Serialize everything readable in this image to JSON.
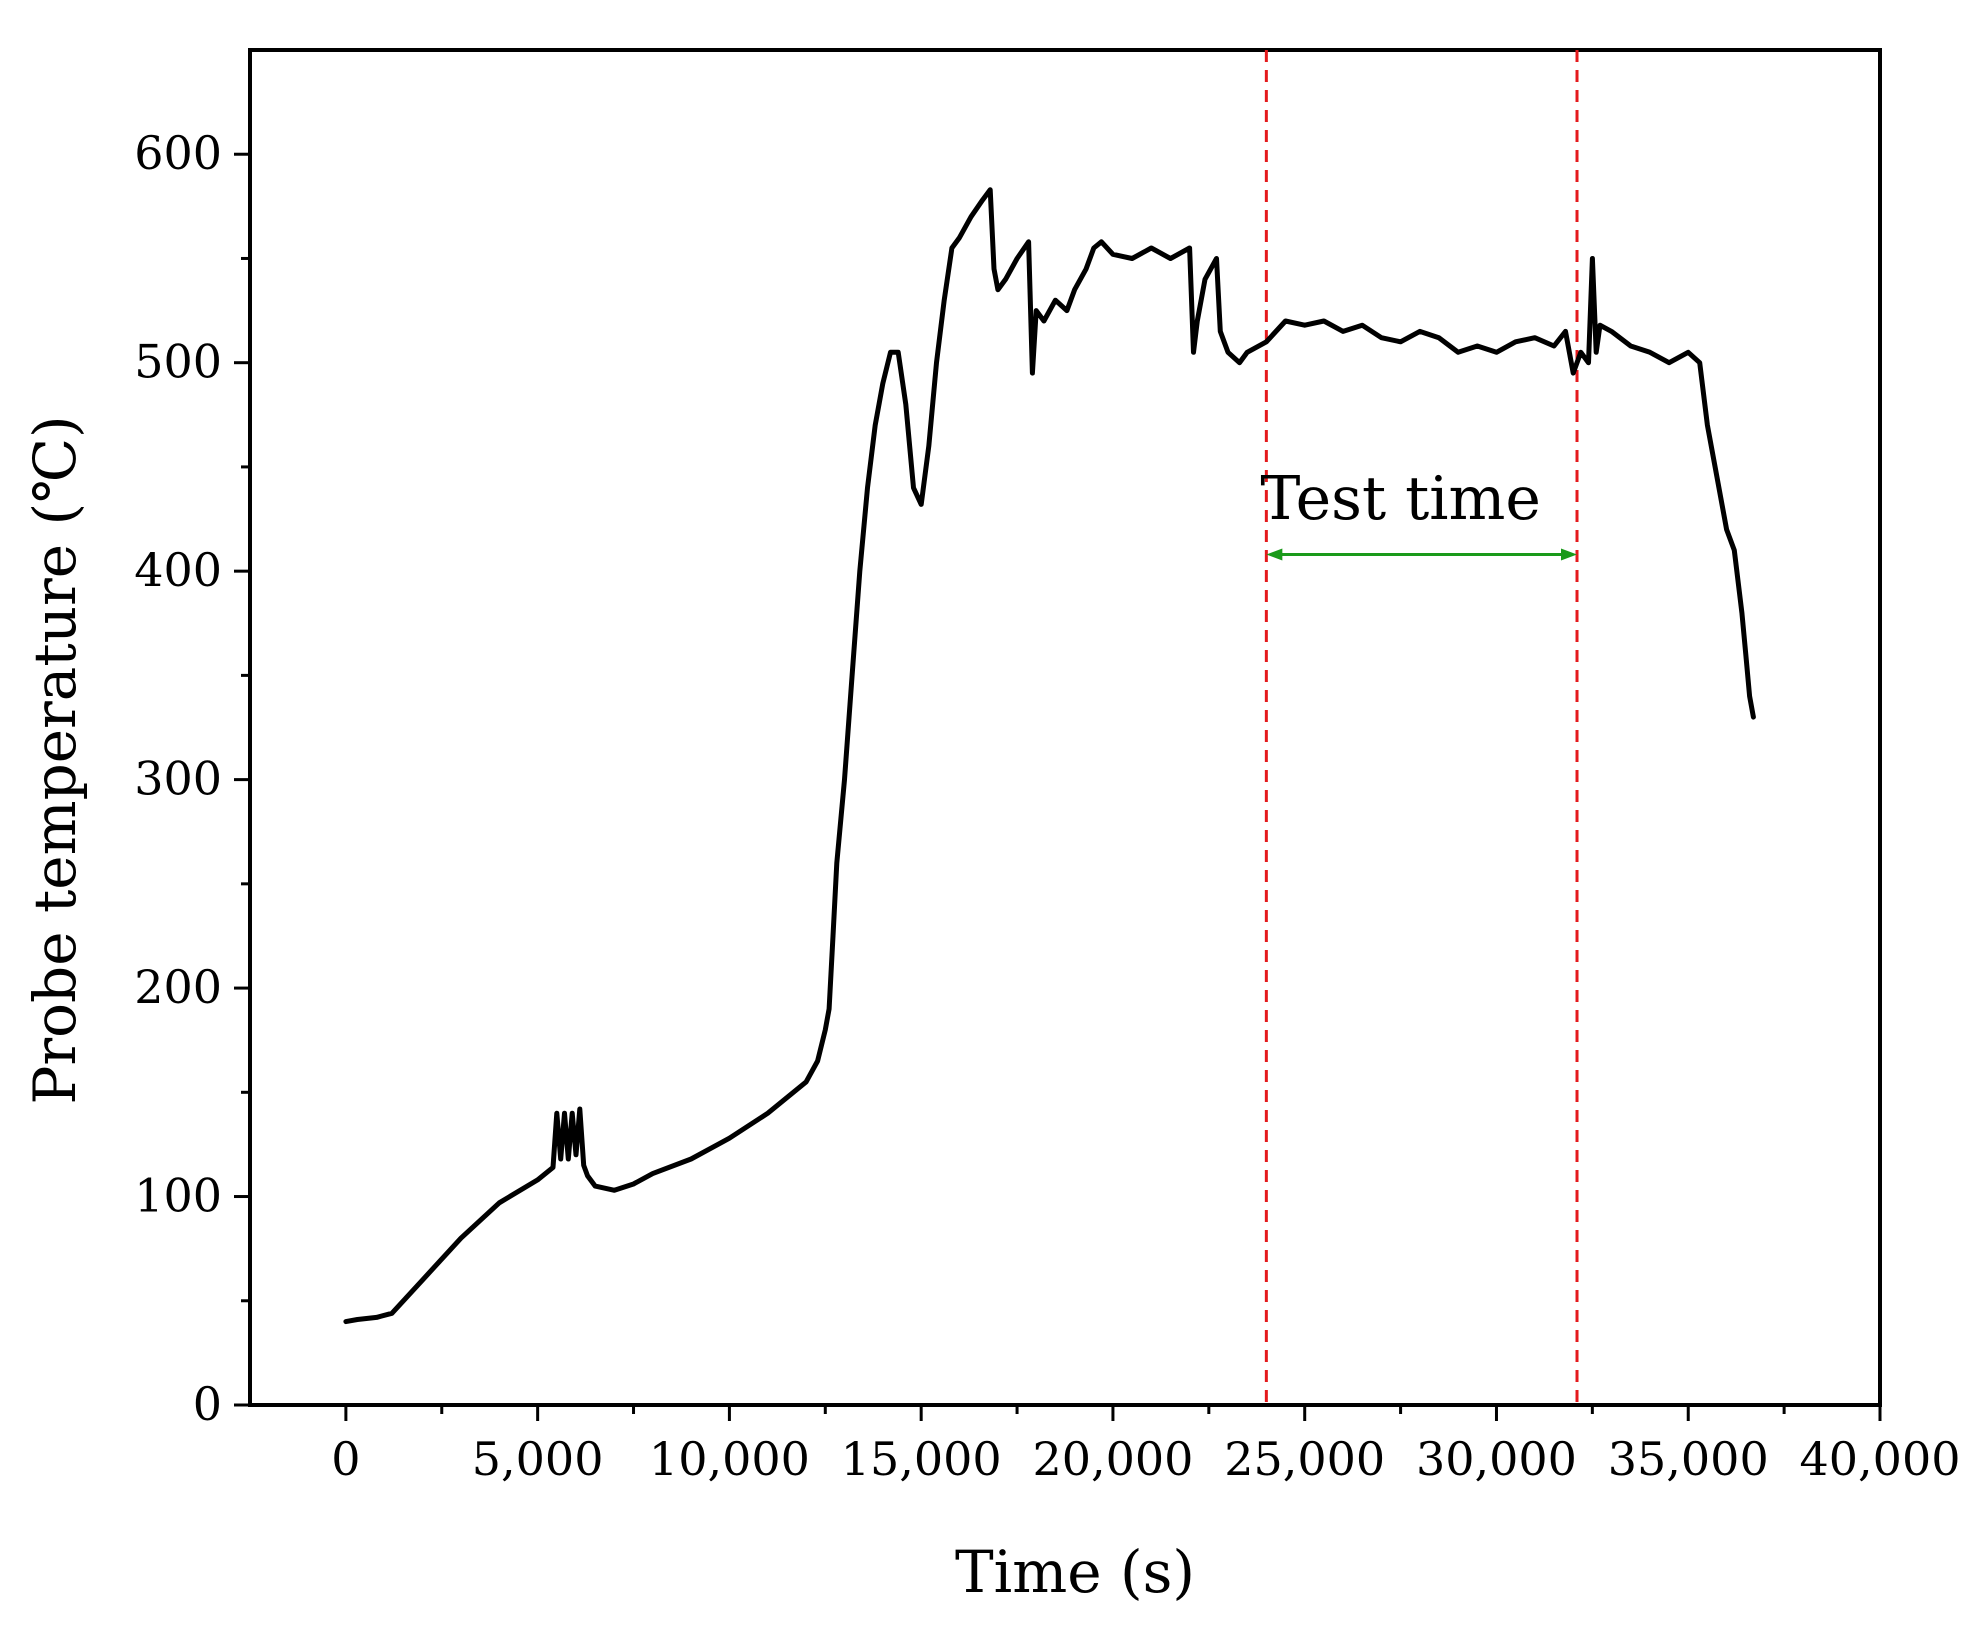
{
  "chart_data": {
    "type": "line",
    "title": "",
    "xlabel": "Time (s)",
    "ylabel": "Probe temperature (℃)",
    "xlim": [
      -2500,
      40000
    ],
    "ylim": [
      0,
      650
    ],
    "x_ticks": [
      0,
      5000,
      10000,
      15000,
      20000,
      25000,
      30000,
      35000,
      40000
    ],
    "x_tick_labels": [
      "0",
      "5,000",
      "10,000",
      "15,000",
      "20,000",
      "25,000",
      "30,000",
      "35,000",
      "40,000"
    ],
    "y_ticks": [
      0,
      100,
      200,
      300,
      400,
      500,
      600
    ],
    "y_tick_labels": [
      "0",
      "100",
      "200",
      "300",
      "400",
      "500",
      "600"
    ],
    "grid": false,
    "legend": "none",
    "series": [
      {
        "color": "#000000",
        "x": [
          0,
          300,
          800,
          1200,
          2000,
          3000,
          4000,
          5000,
          5400,
          5500,
          5600,
          5700,
          5800,
          5900,
          6000,
          6100,
          6200,
          6300,
          6500,
          7000,
          7500,
          8000,
          9000,
          10000,
          11000,
          12000,
          12300,
          12500,
          12600,
          12700,
          12800,
          13000,
          13200,
          13400,
          13600,
          13800,
          14000,
          14200,
          14400,
          14600,
          14800,
          15000,
          15200,
          15400,
          15600,
          15800,
          16000,
          16300,
          16600,
          16800,
          16900,
          17000,
          17200,
          17500,
          17800,
          17900,
          18000,
          18200,
          18500,
          18800,
          19000,
          19300,
          19500,
          19700,
          20000,
          20500,
          21000,
          21500,
          22000,
          22100,
          22200,
          22400,
          22700,
          22800,
          23000,
          23300,
          23500,
          24000,
          24500,
          25000,
          25500,
          26000,
          26500,
          27000,
          27500,
          28000,
          28500,
          29000,
          29500,
          30000,
          30500,
          31000,
          31500,
          31800,
          32000,
          32200,
          32400,
          32500,
          32600,
          32700,
          33000,
          33500,
          34000,
          34500,
          35000,
          35300,
          35500,
          35700,
          36000,
          36200,
          36400,
          36500,
          36600,
          36700
        ],
        "values": [
          40,
          41,
          42,
          44,
          60,
          80,
          97,
          108,
          114,
          140,
          118,
          140,
          118,
          140,
          120,
          142,
          115,
          110,
          105,
          103,
          106,
          111,
          118,
          128,
          140,
          155,
          165,
          180,
          190,
          225,
          260,
          300,
          350,
          400,
          440,
          470,
          490,
          505,
          505,
          480,
          440,
          432,
          460,
          500,
          530,
          555,
          560,
          570,
          578,
          583,
          545,
          535,
          540,
          550,
          558,
          495,
          525,
          520,
          530,
          525,
          535,
          545,
          555,
          558,
          552,
          550,
          555,
          550,
          555,
          505,
          520,
          540,
          550,
          515,
          505,
          500,
          505,
          510,
          520,
          518,
          520,
          515,
          518,
          512,
          510,
          515,
          512,
          505,
          508,
          505,
          510,
          512,
          508,
          515,
          495,
          505,
          500,
          550,
          505,
          518,
          515,
          508,
          505,
          500,
          505,
          500,
          470,
          450,
          420,
          410,
          380,
          360,
          340,
          330
        ]
      }
    ],
    "reference_lines": [
      {
        "axis": "x",
        "value": 24000,
        "style": "dashed",
        "color": "#e41a1c"
      },
      {
        "axis": "x",
        "value": 32100,
        "style": "dashed",
        "color": "#e41a1c"
      }
    ],
    "annotations": [
      {
        "text": "Test time",
        "x": 27500,
        "y": 425,
        "arrow_from": 24000,
        "arrow_to": 32100,
        "arrow_y": 408,
        "arrow_color": "#1a9a1a"
      }
    ]
  }
}
